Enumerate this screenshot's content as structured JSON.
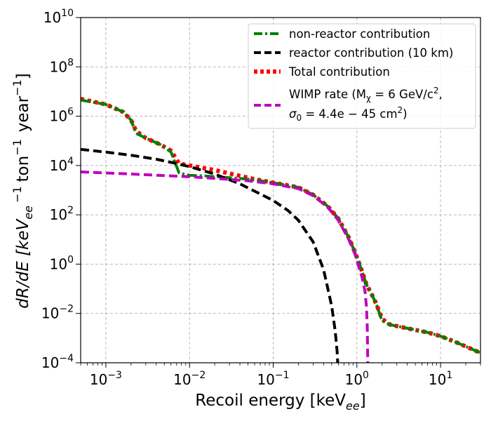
{
  "chart_data": {
    "type": "line",
    "xscale": "log",
    "yscale": "log",
    "xlim": [
      0.0005,
      30
    ],
    "ylim": [
      0.0001,
      10000000000
    ],
    "grid": true,
    "xlabel": "Recoil energy [keV",
    "xlabel_sub": "ee",
    "xlabel_close": "]",
    "ylabel": {
      "pre": "dR/dE [keV",
      "sub": "ee",
      "mid1": "−1",
      "mid2": "ton",
      "mid3": "−1",
      "mid4": "year",
      "mid5": "−1",
      "close": "]"
    },
    "x_ticks": [
      {
        "value": 0.001,
        "base": "10",
        "exp": "−3"
      },
      {
        "value": 0.01,
        "base": "10",
        "exp": "−2"
      },
      {
        "value": 0.1,
        "base": "10",
        "exp": "−1"
      },
      {
        "value": 1,
        "base": "10",
        "exp": "0"
      },
      {
        "value": 10,
        "base": "10",
        "exp": "1"
      }
    ],
    "y_ticks": [
      {
        "value": 0.0001,
        "base": "10",
        "exp": "−4"
      },
      {
        "value": 0.01,
        "base": "10",
        "exp": "−2"
      },
      {
        "value": 1,
        "base": "10",
        "exp": "0"
      },
      {
        "value": 100,
        "base": "10",
        "exp": "2"
      },
      {
        "value": 10000,
        "base": "10",
        "exp": "4"
      },
      {
        "value": 1000000,
        "base": "10",
        "exp": "6"
      },
      {
        "value": 100000000,
        "base": "10",
        "exp": "8"
      },
      {
        "value": 10000000000,
        "base": "10",
        "exp": "10"
      }
    ],
    "legend_position": "top-right",
    "legend": [
      {
        "label": "non-reactor contribution",
        "color": "#008000",
        "style": "dashdot"
      },
      {
        "label": "reactor contribution (10 km)",
        "color": "#000000",
        "style": "dashed"
      },
      {
        "label": "Total contribution",
        "color": "#ff0000",
        "style": "dotted"
      },
      {
        "label_line1": "WIMP rate (M",
        "label_line1_sub": "χ",
        "label_line1_rest": " = 6 GeV/c",
        "label_line1_sup": "2",
        "label_line1_end": ",",
        "label_line2": "σ",
        "label_line2_sub": "0",
        "label_line2_rest": " = 4.4e − 45 cm",
        "label_line2_sup": "2",
        "label_line2_end": ")",
        "color": "#bf00bf",
        "style": "dashed"
      }
    ],
    "series": [
      {
        "name": "Total contribution",
        "color": "#ff0000",
        "style": "dotted",
        "points": [
          [
            0.0005,
            5000000
          ],
          [
            0.001,
            3000000
          ],
          [
            0.0016,
            1500000
          ],
          [
            0.002,
            700000
          ],
          [
            0.0023,
            250000
          ],
          [
            0.003,
            130000
          ],
          [
            0.0045,
            70000
          ],
          [
            0.006,
            40000
          ],
          [
            0.0075,
            12000
          ],
          [
            0.01,
            10000
          ],
          [
            0.02,
            6500
          ],
          [
            0.04,
            3800
          ],
          [
            0.06,
            2800
          ],
          [
            0.1,
            2000
          ],
          [
            0.2,
            1300
          ],
          [
            0.3,
            650
          ],
          [
            0.45,
            220
          ],
          [
            0.6,
            70
          ],
          [
            0.8,
            12
          ],
          [
            0.95,
            3
          ],
          [
            1.1,
            0.8
          ],
          [
            1.3,
            0.15
          ],
          [
            1.5,
            0.06
          ],
          [
            1.7,
            0.025
          ],
          [
            2.0,
            0.006
          ],
          [
            2.5,
            0.0035
          ],
          [
            4,
            0.0025
          ],
          [
            7,
            0.0017
          ],
          [
            10,
            0.0012
          ],
          [
            15,
            0.0007
          ],
          [
            22,
            0.0004
          ],
          [
            30,
            0.00025
          ]
        ]
      },
      {
        "name": "non-reactor contribution",
        "color": "#008000",
        "style": "dashdot",
        "points": [
          [
            0.0005,
            4500000
          ],
          [
            0.001,
            3000000
          ],
          [
            0.0016,
            1500000
          ],
          [
            0.002,
            700000
          ],
          [
            0.0023,
            200000
          ],
          [
            0.003,
            130000
          ],
          [
            0.0045,
            70000
          ],
          [
            0.006,
            35000
          ],
          [
            0.0075,
            5000
          ],
          [
            0.01,
            4000
          ],
          [
            0.015,
            3800
          ],
          [
            0.02,
            3500
          ],
          [
            0.04,
            3000
          ],
          [
            0.06,
            2600
          ],
          [
            0.1,
            2000
          ],
          [
            0.2,
            1300
          ],
          [
            0.3,
            650
          ],
          [
            0.45,
            220
          ],
          [
            0.6,
            70
          ],
          [
            0.8,
            12
          ],
          [
            0.95,
            3
          ],
          [
            1.1,
            0.8
          ],
          [
            1.3,
            0.15
          ],
          [
            1.5,
            0.06
          ],
          [
            1.7,
            0.025
          ],
          [
            2.0,
            0.005
          ],
          [
            2.5,
            0.0035
          ],
          [
            4,
            0.0025
          ],
          [
            7,
            0.0017
          ],
          [
            10,
            0.0012
          ],
          [
            15,
            0.0007
          ],
          [
            22,
            0.0004
          ],
          [
            30,
            0.00025
          ]
        ]
      },
      {
        "name": "reactor contribution (10 km)",
        "color": "#000000",
        "style": "dashed",
        "points": [
          [
            0.0005,
            45000
          ],
          [
            0.001,
            35000
          ],
          [
            0.002,
            26000
          ],
          [
            0.004,
            18000
          ],
          [
            0.007,
            12000
          ],
          [
            0.01,
            9000
          ],
          [
            0.02,
            4500
          ],
          [
            0.04,
            1800
          ],
          [
            0.07,
            700
          ],
          [
            0.1,
            380
          ],
          [
            0.15,
            150
          ],
          [
            0.2,
            60
          ],
          [
            0.3,
            8
          ],
          [
            0.4,
            0.6
          ],
          [
            0.5,
            0.02
          ],
          [
            0.55,
            0.002
          ],
          [
            0.58,
            0.0003
          ],
          [
            0.59,
            0.0001
          ]
        ]
      },
      {
        "name": "WIMP rate",
        "color": "#bf00bf",
        "style": "dashed",
        "points": [
          [
            0.0005,
            5500
          ],
          [
            0.001,
            5000
          ],
          [
            0.002,
            4500
          ],
          [
            0.005,
            3900
          ],
          [
            0.01,
            3500
          ],
          [
            0.02,
            3000
          ],
          [
            0.05,
            2400
          ],
          [
            0.1,
            1800
          ],
          [
            0.2,
            1150
          ],
          [
            0.3,
            600
          ],
          [
            0.45,
            200
          ],
          [
            0.6,
            60
          ],
          [
            0.8,
            10
          ],
          [
            0.95,
            2.5
          ],
          [
            1.05,
            0.8
          ],
          [
            1.15,
            0.3
          ],
          [
            1.25,
            0.08
          ],
          [
            1.3,
            0.02
          ],
          [
            1.33,
            0.003
          ],
          [
            1.35,
            0.0001
          ]
        ]
      }
    ]
  }
}
